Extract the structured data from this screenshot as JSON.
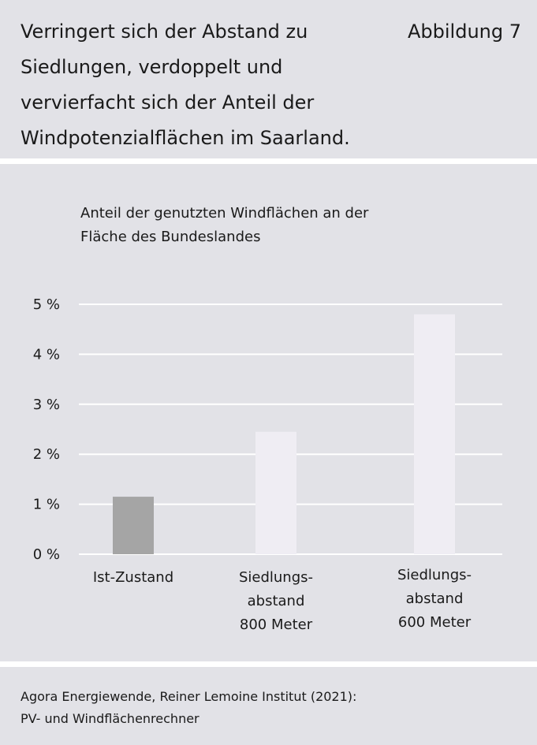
{
  "header": {
    "title_lines": [
      "Verringert sich der Abstand zu",
      "Siedlungen, verdoppelt und",
      "vervierfacht sich der Anteil der",
      "Windpotenzialflächen im Saarland."
    ],
    "figure_label": "Abbildung 7"
  },
  "chart_data": {
    "type": "bar",
    "ylabel_lines": [
      "Anteil der genutzten Windflächen an der",
      "Fläche des Bundeslandes"
    ],
    "categories": [
      [
        "Ist-Zustand"
      ],
      [
        "Siedlungs-",
        "abstand",
        "800 Meter"
      ],
      [
        "Siedlungs-",
        "abstand",
        "600 Meter"
      ]
    ],
    "values": [
      1.15,
      2.45,
      4.8
    ],
    "unit": "%",
    "ylim": [
      0,
      5
    ],
    "yticks": [
      0,
      1,
      2,
      3,
      4,
      5
    ],
    "ytick_labels": [
      "0 %",
      "1 %",
      "2 %",
      "3 %",
      "4 %",
      "5 %"
    ],
    "grid": true,
    "bar_colors": [
      "#a5a5a5",
      "#efedf3",
      "#efedf3"
    ],
    "grid_color": "#ffffff"
  },
  "footer": {
    "source_lines": [
      "Agora Energiewende, Reiner Lemoine Institut (2021):",
      "PV- und Windflächenrechner"
    ]
  }
}
